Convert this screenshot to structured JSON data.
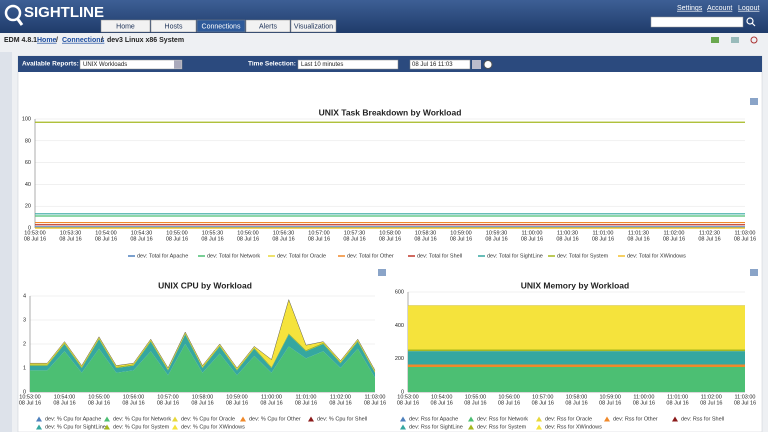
{
  "header": {
    "logo": "SIGHTLINE",
    "tabs": [
      "Home",
      "Hosts",
      "Connections",
      "Alerts",
      "Visualization"
    ],
    "links": [
      "Settings",
      "Account",
      "Logout"
    ]
  },
  "breadcrumb": {
    "version": "EDM 4.8.1",
    "separator": "/",
    "items": [
      "Home",
      "Connections",
      "dev3 Linux x86 System"
    ]
  },
  "toolbar": {
    "reports_label": "Available Reports:",
    "report": "UNIX Workloads",
    "time_label": "Time Selection:",
    "time_range": "Last 10 minutes",
    "time_end": "08 Jul 16 11:03"
  },
  "chart_data": [
    {
      "type": "line",
      "title": "UNIX Task Breakdown by Workload",
      "categories": [
        "10:53:00",
        "10:53:30",
        "10:54:00",
        "10:54:30",
        "10:55:00",
        "10:55:30",
        "10:56:00",
        "10:56:30",
        "10:57:00",
        "10:57:30",
        "10:58:00",
        "10:58:30",
        "10:59:00",
        "10:59:30",
        "11:00:00",
        "11:00:30",
        "11:01:00",
        "11:01:30",
        "11:02:00",
        "11:02:30",
        "11:03:00"
      ],
      "date_label": "08 Jul 16",
      "ylim": [
        0,
        100
      ],
      "yticks": [
        0,
        20,
        40,
        60,
        80,
        100
      ],
      "grid": true,
      "series": [
        {
          "name": "dev: Total for Apache",
          "color": "#4f81bd",
          "values": [
            1,
            1,
            1,
            1,
            1,
            1,
            1,
            1,
            1,
            1,
            1,
            1,
            1,
            1,
            1,
            1,
            1,
            1,
            1,
            1,
            1
          ]
        },
        {
          "name": "dev: Total for Network",
          "color": "#4cbf73",
          "values": [
            11,
            11,
            11,
            11,
            11,
            11,
            11,
            11,
            11,
            11,
            11,
            11,
            11,
            11,
            11,
            11,
            11,
            11,
            11,
            11,
            11
          ]
        },
        {
          "name": "dev: Total for Oracle",
          "color": "#e8d83a",
          "values": [
            0,
            0,
            0,
            0,
            0,
            0,
            0,
            0,
            0,
            0,
            0,
            0,
            0,
            0,
            0,
            0,
            0,
            0,
            0,
            0,
            0
          ]
        },
        {
          "name": "dev: Total for Other",
          "color": "#f0892a",
          "values": [
            5,
            5,
            5,
            5,
            5,
            5,
            5,
            5,
            5,
            5,
            5,
            5,
            5,
            5,
            5,
            5,
            5,
            5,
            5,
            5,
            5
          ]
        },
        {
          "name": "dev: Total for Shell",
          "color": "#c0392b",
          "values": [
            3,
            3,
            3,
            3,
            3,
            3,
            3,
            3,
            3,
            3,
            3,
            3,
            3,
            3,
            3,
            3,
            3,
            3,
            3,
            3,
            3
          ]
        },
        {
          "name": "dev: Total for SightLine",
          "color": "#35a7a0",
          "values": [
            13,
            13,
            13,
            13,
            13,
            13,
            13,
            13,
            13,
            13,
            13,
            13,
            13,
            13,
            13,
            13,
            13,
            13,
            13,
            13,
            13
          ]
        },
        {
          "name": "dev: Total for System",
          "color": "#a5b820",
          "values": [
            97,
            97,
            97,
            97,
            97,
            97,
            97,
            97,
            97,
            97,
            97,
            97,
            97,
            97,
            97,
            97,
            97,
            97,
            97,
            97,
            97
          ]
        },
        {
          "name": "dev: Total for XWindows",
          "color": "#f2c12e",
          "values": [
            0,
            0,
            0,
            0,
            0,
            0,
            0,
            0,
            0,
            0,
            0,
            0,
            0,
            0,
            0,
            0,
            0,
            0,
            0,
            0,
            0
          ]
        }
      ]
    },
    {
      "type": "area",
      "stacked": true,
      "title": "UNIX CPU by Workload",
      "categories": [
        "10:53:00",
        null,
        "10:54:00",
        null,
        "10:55:00",
        null,
        "10:56:00",
        null,
        "10:57:00",
        null,
        "10:58:00",
        null,
        "10:59:00",
        null,
        "11:00:00",
        null,
        "11:01:00",
        null,
        "11:02:00",
        null,
        "11:03:00"
      ],
      "date_label": "08 Jul 16",
      "ylim": [
        0,
        4
      ],
      "yticks": [
        0,
        1,
        2,
        3,
        4
      ],
      "grid": true,
      "series": [
        {
          "name": "dev: % Cpu for Apache",
          "color": "#4f81bd",
          "values": [
            0,
            0,
            0,
            0,
            0,
            0,
            0,
            0,
            0,
            0,
            0,
            0,
            0,
            0,
            0,
            0,
            0,
            0,
            0,
            0,
            0
          ]
        },
        {
          "name": "dev: % Cpu for Network",
          "color": "#4cbf73",
          "values": [
            0.9,
            0.9,
            1.7,
            0.8,
            1.8,
            0.8,
            0.9,
            1.7,
            0.7,
            2.0,
            0.8,
            1.6,
            0.7,
            1.5,
            0.8,
            1.9,
            1.4,
            1.7,
            1.0,
            1.8,
            0.6
          ]
        },
        {
          "name": "dev: % Cpu for Oracle",
          "color": "#e8d83a",
          "values": [
            0,
            0,
            0,
            0,
            0,
            0,
            0,
            0,
            0,
            0,
            0,
            0,
            0,
            0,
            0,
            0,
            0,
            0,
            0,
            0,
            0
          ]
        },
        {
          "name": "dev: % Cpu for Other",
          "color": "#f0892a",
          "values": [
            0,
            0,
            0,
            0,
            0,
            0,
            0,
            0,
            0,
            0,
            0,
            0,
            0,
            0,
            0,
            0,
            0,
            0,
            0,
            0,
            0
          ]
        },
        {
          "name": "dev: % Cpu for Shell",
          "color": "#8b1a1a",
          "values": [
            0,
            0,
            0,
            0,
            0,
            0,
            0,
            0,
            0,
            0,
            0,
            0,
            0,
            0,
            0,
            0,
            0,
            0,
            0,
            0,
            0
          ]
        },
        {
          "name": "dev: % Cpu for SightLine",
          "color": "#35a7a0",
          "values": [
            0.2,
            0.2,
            0.3,
            0.2,
            0.4,
            0.2,
            0.2,
            0.4,
            0.2,
            0.4,
            0.2,
            0.3,
            0.2,
            0.3,
            0.2,
            0.5,
            0.3,
            0.3,
            0.2,
            0.3,
            0.2
          ]
        },
        {
          "name": "dev: % Cpu for System",
          "color": "#a5b820",
          "values": [
            0.05,
            0.05,
            0.05,
            0.05,
            0.05,
            0.05,
            0.05,
            0.05,
            0.05,
            0.05,
            0.05,
            0.05,
            0.05,
            0.05,
            0.05,
            0.05,
            0.05,
            0.05,
            0.05,
            0.05,
            0.05
          ]
        },
        {
          "name": "dev: % Cpu for XWindows",
          "color": "#f5e33c",
          "values": [
            0.05,
            0.05,
            0.05,
            0.05,
            0.05,
            0.05,
            0.05,
            0.05,
            0.05,
            0.05,
            0.05,
            0.05,
            0.05,
            0.05,
            0.3,
            1.4,
            0.2,
            0.05,
            0.05,
            0.05,
            0.05
          ]
        }
      ]
    },
    {
      "type": "area",
      "stacked": true,
      "title": "UNIX Memory by Workload",
      "categories": [
        "10:53:00",
        "10:54:00",
        "10:55:00",
        "10:56:00",
        "10:57:00",
        "10:58:00",
        "10:59:00",
        "11:00:00",
        "11:01:00",
        "11:02:00",
        "11:03:00"
      ],
      "date_label": "08 Jul 16",
      "ylim": [
        0,
        600
      ],
      "yticks": [
        0,
        200,
        400,
        600
      ],
      "grid": true,
      "series": [
        {
          "name": "dev: Rss for Apache",
          "color": "#4f81bd",
          "values": [
            0,
            0,
            0,
            0,
            0,
            0,
            0,
            0,
            0,
            0,
            0
          ]
        },
        {
          "name": "dev: Rss for Network",
          "color": "#4cbf73",
          "values": [
            150,
            150,
            150,
            150,
            150,
            150,
            150,
            150,
            150,
            150,
            150
          ]
        },
        {
          "name": "dev: Rss for Oracle",
          "color": "#e8d83a",
          "values": [
            0,
            0,
            0,
            0,
            0,
            0,
            0,
            0,
            0,
            0,
            0
          ]
        },
        {
          "name": "dev: Rss for Other",
          "color": "#f0892a",
          "values": [
            15,
            15,
            15,
            15,
            15,
            15,
            15,
            15,
            15,
            15,
            15
          ]
        },
        {
          "name": "dev: Rss for Shell",
          "color": "#8b1a1a",
          "values": [
            0,
            0,
            0,
            0,
            0,
            0,
            0,
            0,
            0,
            0,
            0
          ]
        },
        {
          "name": "dev: Rss for SightLine",
          "color": "#35a7a0",
          "values": [
            80,
            80,
            80,
            80,
            80,
            80,
            80,
            80,
            80,
            80,
            80
          ]
        },
        {
          "name": "dev: Rss for System",
          "color": "#a5b820",
          "values": [
            10,
            10,
            10,
            10,
            10,
            10,
            10,
            10,
            10,
            10,
            10
          ]
        },
        {
          "name": "dev: Rss for XWindows",
          "color": "#f5e33c",
          "values": [
            265,
            265,
            265,
            265,
            265,
            265,
            265,
            265,
            265,
            265,
            265
          ]
        }
      ]
    }
  ]
}
